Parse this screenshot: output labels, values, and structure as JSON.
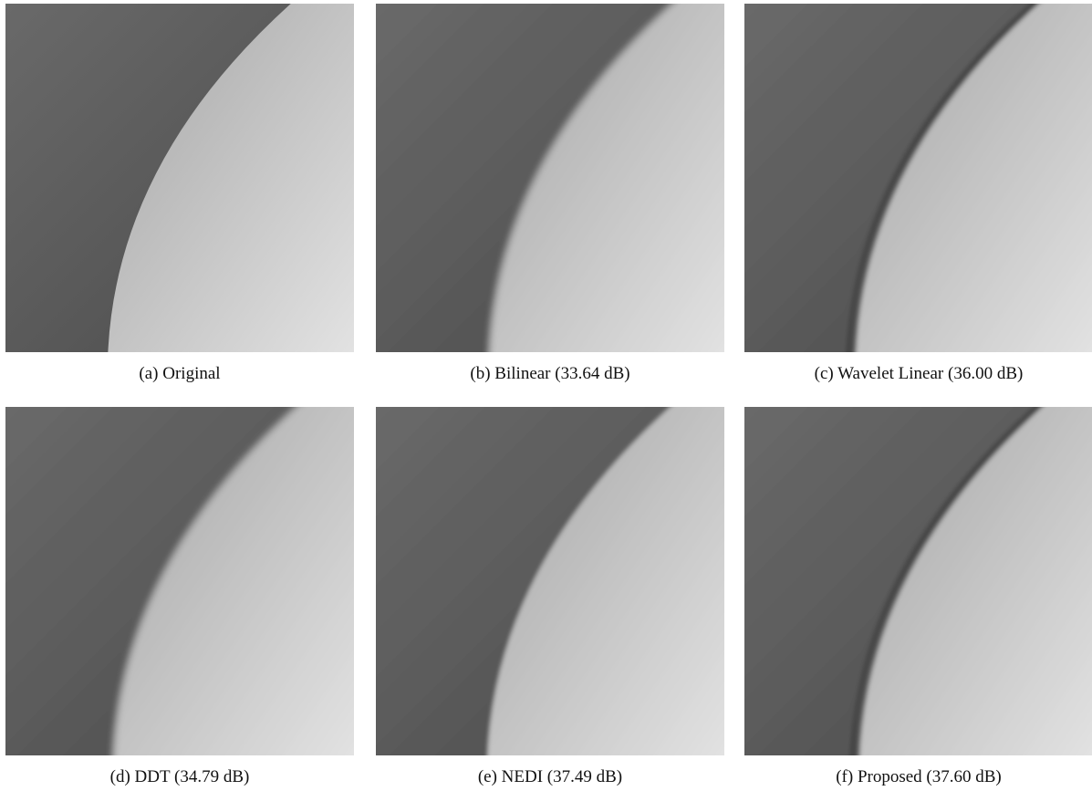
{
  "figure": {
    "panels": [
      {
        "caption": "(a) Original"
      },
      {
        "caption": "(b) Bilinear (33.64 dB)"
      },
      {
        "caption": "(c) Wavelet Linear (36.00 dB)"
      },
      {
        "caption": "(d) DDT (34.79 dB)"
      },
      {
        "caption": "(e) NEDI (37.49 dB)"
      },
      {
        "caption": "(f) Proposed (37.60 dB)"
      }
    ]
  }
}
